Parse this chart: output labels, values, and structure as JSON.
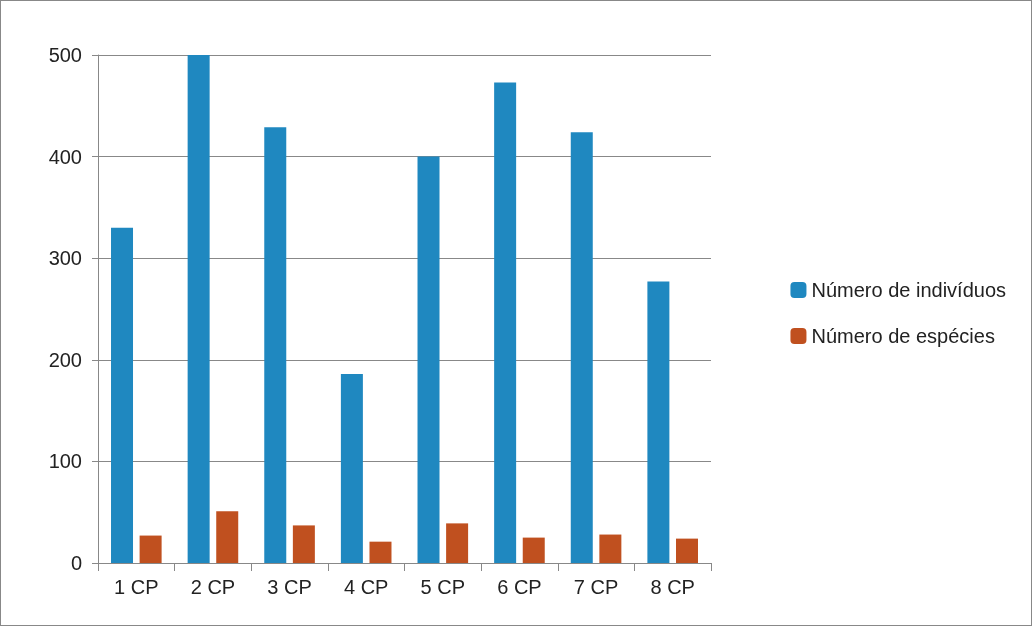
{
  "chart_data": {
    "type": "bar",
    "categories": [
      "1 CP",
      "2 CP",
      "3 CP",
      "4 CP",
      "5 CP",
      "6 CP",
      "7 CP",
      "8 CP"
    ],
    "series": [
      {
        "name": "Número de indivíduos",
        "color": "#1f88c0",
        "values": [
          330,
          500,
          429,
          186,
          400,
          473,
          424,
          277
        ]
      },
      {
        "name": "Número de espécies",
        "color": "#c0501f",
        "values": [
          27,
          51,
          37,
          21,
          39,
          25,
          28,
          24
        ]
      }
    ],
    "ylim": [
      0,
      500
    ],
    "yticks": [
      0,
      100,
      200,
      300,
      400,
      500
    ],
    "grid": "y",
    "legend": "right"
  }
}
